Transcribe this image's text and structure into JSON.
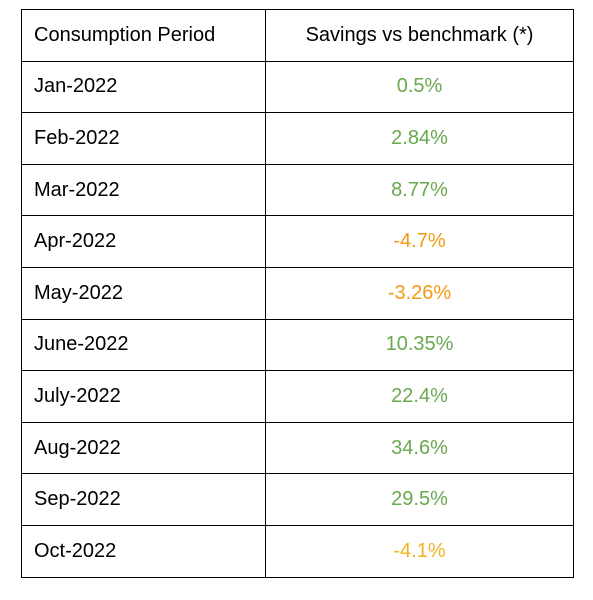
{
  "table": {
    "headers": [
      "Consumption Period",
      "Savings vs benchmark (*)"
    ],
    "rows": [
      {
        "period": "Jan-2022",
        "savings": "0.5%",
        "color": "#6aa84f"
      },
      {
        "period": "Feb-2022",
        "savings": "2.84%",
        "color": "#6aa84f"
      },
      {
        "period": "Mar-2022",
        "savings": "8.77%",
        "color": "#6aa84f"
      },
      {
        "period": "Apr-2022",
        "savings": "-4.7%",
        "color": "#f29b12"
      },
      {
        "period": "May-2022",
        "savings": "-3.26%",
        "color": "#f29b12"
      },
      {
        "period": "June-2022",
        "savings": "10.35%",
        "color": "#6aa84f"
      },
      {
        "period": "July-2022",
        "savings": "22.4%",
        "color": "#6aa84f"
      },
      {
        "period": "Aug-2022",
        "savings": "34.6%",
        "color": "#6aa84f"
      },
      {
        "period": "Sep-2022",
        "savings": "29.5%",
        "color": "#6aa84f"
      },
      {
        "period": "Oct-2022",
        "savings": "-4.1%",
        "color": "#f1b320"
      }
    ]
  }
}
